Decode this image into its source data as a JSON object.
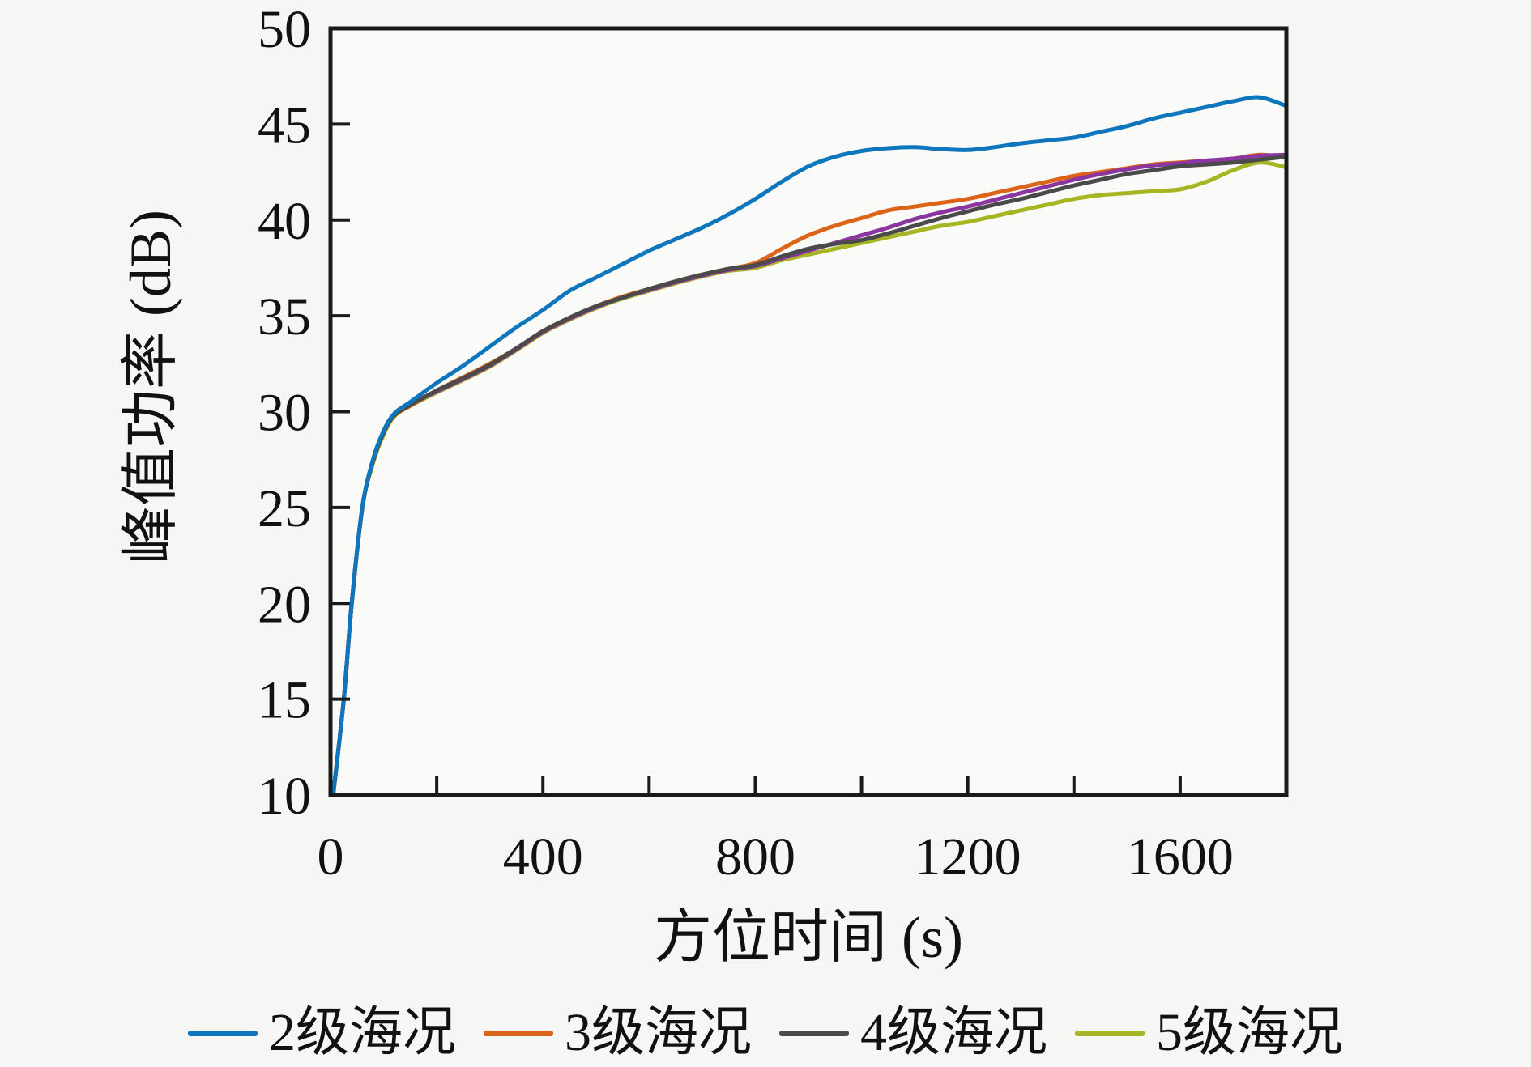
{
  "figure": {
    "background": "#f6f6f4",
    "plot_background": "#fafaf9",
    "axis_color": "#1a1a1a",
    "text_color": "#111111"
  },
  "chart_data": {
    "type": "line",
    "title": "",
    "xlabel": "方位时间 (s)",
    "ylabel": "峰值功率 (dB)",
    "xlim": [
      0,
      1800
    ],
    "ylim": [
      10,
      50
    ],
    "grid": false,
    "legend_position": "bottom",
    "x_ticks": [
      {
        "v": 0,
        "t": "0"
      },
      {
        "v": 200,
        "t": ""
      },
      {
        "v": 400,
        "t": "400"
      },
      {
        "v": 600,
        "t": ""
      },
      {
        "v": 800,
        "t": "800"
      },
      {
        "v": 1000,
        "t": ""
      },
      {
        "v": 1200,
        "t": "1200"
      },
      {
        "v": 1400,
        "t": ""
      },
      {
        "v": 1600,
        "t": "1600"
      },
      {
        "v": 1800,
        "t": ""
      }
    ],
    "y_ticks": [
      {
        "v": 10,
        "t": "10"
      },
      {
        "v": 15,
        "t": "15"
      },
      {
        "v": 20,
        "t": "20"
      },
      {
        "v": 25,
        "t": "25"
      },
      {
        "v": 30,
        "t": "30"
      },
      {
        "v": 35,
        "t": "35"
      },
      {
        "v": 40,
        "t": "40"
      },
      {
        "v": 45,
        "t": "45"
      },
      {
        "v": 50,
        "t": "50"
      }
    ],
    "x": [
      5,
      25,
      40,
      60,
      80,
      100,
      120,
      150,
      200,
      250,
      300,
      350,
      400,
      450,
      500,
      550,
      600,
      650,
      700,
      750,
      800,
      850,
      900,
      950,
      1000,
      1050,
      1100,
      1150,
      1200,
      1250,
      1300,
      1350,
      1400,
      1450,
      1500,
      1550,
      1600,
      1650,
      1700,
      1750,
      1800
    ],
    "series": [
      {
        "name": "2级海况",
        "color": "#0e76bc",
        "z": 5,
        "in_legend": true,
        "y": [
          10,
          15,
          20,
          25,
          27.5,
          29,
          29.9,
          30.5,
          31.5,
          32.4,
          33.4,
          34.4,
          35.3,
          36.3,
          37.0,
          37.7,
          38.4,
          39.0,
          39.6,
          40.3,
          41.1,
          42.0,
          42.8,
          43.3,
          43.6,
          43.75,
          43.8,
          43.7,
          43.65,
          43.8,
          44.0,
          44.15,
          44.3,
          44.6,
          44.9,
          45.3,
          45.6,
          45.9,
          46.2,
          46.4,
          45.95
        ]
      },
      {
        "name": "3级海况",
        "color": "#dc6418",
        "z": 2,
        "in_legend": true,
        "y": [
          10,
          15,
          20,
          25,
          27.4,
          28.9,
          29.8,
          30.3,
          31.1,
          31.8,
          32.5,
          33.3,
          34.2,
          34.9,
          35.5,
          36.0,
          36.4,
          36.8,
          37.15,
          37.45,
          37.75,
          38.5,
          39.2,
          39.7,
          40.1,
          40.5,
          40.7,
          40.9,
          41.1,
          41.4,
          41.7,
          42.0,
          42.3,
          42.5,
          42.7,
          42.9,
          43.0,
          43.1,
          43.2,
          43.4,
          43.25
        ]
      },
      {
        "name": "4级海况",
        "color": "#4a4a4a",
        "z": 4,
        "in_legend": true,
        "y": [
          10,
          15,
          20,
          25,
          27.4,
          28.9,
          29.8,
          30.35,
          31.1,
          31.75,
          32.45,
          33.3,
          34.2,
          34.9,
          35.5,
          35.95,
          36.4,
          36.8,
          37.15,
          37.45,
          37.65,
          38.1,
          38.5,
          38.75,
          38.95,
          39.3,
          39.7,
          40.1,
          40.45,
          40.8,
          41.1,
          41.45,
          41.8,
          42.1,
          42.4,
          42.6,
          42.8,
          42.9,
          43.0,
          43.15,
          43.3
        ]
      },
      {
        "name": "5级海况",
        "color": "#a6b622",
        "z": 1,
        "in_legend": true,
        "y": [
          10,
          15,
          20,
          25,
          27.3,
          28.8,
          29.75,
          30.3,
          31.0,
          31.65,
          32.35,
          33.2,
          34.1,
          34.8,
          35.4,
          35.9,
          36.3,
          36.7,
          37.05,
          37.35,
          37.5,
          37.9,
          38.2,
          38.5,
          38.8,
          39.1,
          39.4,
          39.7,
          39.9,
          40.2,
          40.5,
          40.8,
          41.1,
          41.3,
          41.4,
          41.5,
          41.6,
          42.0,
          42.6,
          43.0,
          42.75
        ]
      },
      {
        "name": "",
        "color": "#8b36a0",
        "z": 3,
        "in_legend": false,
        "y": [
          10,
          15,
          20,
          25,
          27.45,
          28.95,
          29.85,
          30.4,
          31.05,
          31.7,
          32.4,
          33.25,
          34.15,
          34.85,
          35.45,
          35.95,
          36.35,
          36.75,
          37.1,
          37.4,
          37.6,
          38.0,
          38.4,
          38.8,
          39.2,
          39.6,
          40.05,
          40.4,
          40.7,
          41.05,
          41.4,
          41.75,
          42.1,
          42.4,
          42.65,
          42.85,
          42.95,
          43.1,
          43.2,
          43.35,
          43.4
        ]
      }
    ]
  }
}
